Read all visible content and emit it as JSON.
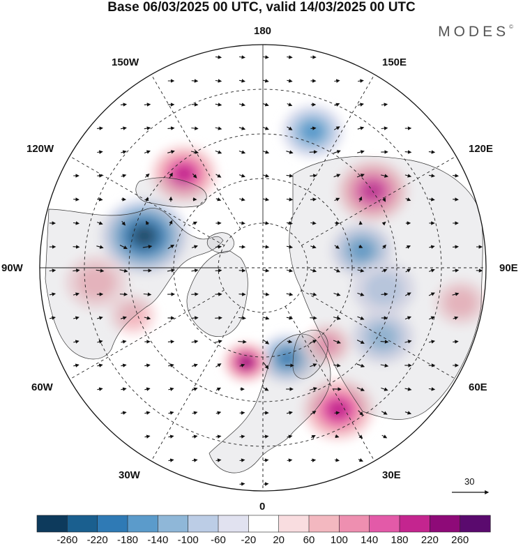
{
  "title": "Base 06/03/2025 00 UTC, valid 14/03/2025 00 UTC",
  "brand": "MODES",
  "brand_mark": "©",
  "longitude_labels": {
    "top": "180",
    "top_right": "150E",
    "right_upper": "120E",
    "right": "90E",
    "right_lower": "60E",
    "bottom_right": "30E",
    "bottom": "0",
    "bottom_left": "30W",
    "left_lower": "60W",
    "left": "90W",
    "left_upper": "120W",
    "top_left": "150W"
  },
  "wind_reference": {
    "value": "30"
  },
  "colorbar": {
    "colors": [
      "#0d3a5c",
      "#1a5f8f",
      "#2f7ab5",
      "#5b9bcb",
      "#8fb7d8",
      "#bccde6",
      "#e1e2f0",
      "#ffffff",
      "#f9dde0",
      "#f3b8c0",
      "#ee8fb0",
      "#e35aa8",
      "#c4258f",
      "#8e0a78",
      "#5a0a6e"
    ],
    "labels": [
      "-260",
      "-220",
      "-180",
      "-140",
      "-100",
      "-60",
      "-20",
      "20",
      "60",
      "100",
      "140",
      "180",
      "220",
      "260"
    ]
  },
  "anomalies": [
    {
      "lon": -105,
      "r": 0.55,
      "value": -260,
      "size": 0.17
    },
    {
      "lon": -140,
      "r": 0.55,
      "value": 200,
      "size": 0.13
    },
    {
      "lon": 160,
      "r": 0.65,
      "value": -150,
      "size": 0.12
    },
    {
      "lon": 125,
      "r": 0.6,
      "value": 190,
      "size": 0.14
    },
    {
      "lon": 100,
      "r": 0.45,
      "value": -140,
      "size": 0.12
    },
    {
      "lon": 28,
      "r": 0.72,
      "value": 210,
      "size": 0.14
    },
    {
      "lon": 15,
      "r": 0.42,
      "value": -200,
      "size": 0.11
    },
    {
      "lon": -10,
      "r": 0.43,
      "value": 230,
      "size": 0.09
    },
    {
      "lon": 60,
      "r": 0.62,
      "value": -110,
      "size": 0.12
    },
    {
      "lon": 40,
      "r": 0.45,
      "value": 100,
      "size": 0.09
    },
    {
      "lon": 80,
      "r": 0.9,
      "value": 80,
      "size": 0.1
    },
    {
      "lon": -85,
      "r": 0.75,
      "value": 70,
      "size": 0.12
    },
    {
      "lon": -70,
      "r": 0.62,
      "value": 80,
      "size": 0.09
    },
    {
      "lon": 80,
      "r": 0.55,
      "value": -80,
      "size": 0.12
    }
  ]
}
